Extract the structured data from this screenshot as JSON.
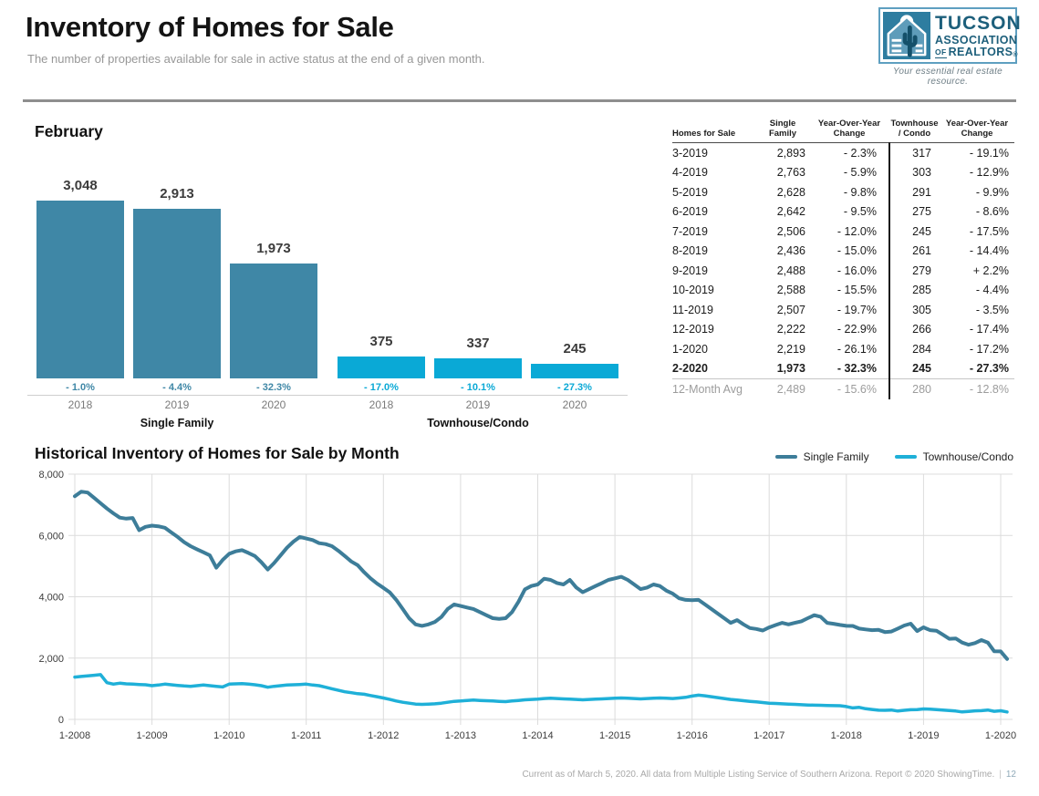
{
  "header": {
    "title": "Inventory of Homes for Sale",
    "subtitle": "The number of properties available for sale in active status at the end of a given month.",
    "logo": {
      "line1": "TUCSON",
      "line2": "ASSOCIATION",
      "line3_of": "OF",
      "line3_rest": "REALTORS",
      "reg": "®",
      "tagline": "Your essential real estate resource."
    }
  },
  "colors": {
    "single_family_bar": "#3f87a6",
    "townhouse_bar": "#0aa9d6",
    "single_family_line": "#3d7d99",
    "townhouse_line": "#1fb0d8",
    "grid": "#dcdcdc"
  },
  "table": {
    "col_headers": [
      {
        "l1": "Homes for Sale",
        "l2": ""
      },
      {
        "l1": "Single",
        "l2": "Family"
      },
      {
        "l1": "Year-Over-Year",
        "l2": "Change"
      },
      {
        "l1": "Townhouse",
        "l2": "/ Condo"
      },
      {
        "l1": "Year-Over-Year",
        "l2": "Change"
      }
    ],
    "rows": [
      [
        "3-2019",
        "2,893",
        "- 2.3%",
        "317",
        "- 19.1%"
      ],
      [
        "4-2019",
        "2,763",
        "- 5.9%",
        "303",
        "- 12.9%"
      ],
      [
        "5-2019",
        "2,628",
        "- 9.8%",
        "291",
        "- 9.9%"
      ],
      [
        "6-2019",
        "2,642",
        "- 9.5%",
        "275",
        "- 8.6%"
      ],
      [
        "7-2019",
        "2,506",
        "- 12.0%",
        "245",
        "- 17.5%"
      ],
      [
        "8-2019",
        "2,436",
        "- 15.0%",
        "261",
        "- 14.4%"
      ],
      [
        "9-2019",
        "2,488",
        "- 16.0%",
        "279",
        "+ 2.2%"
      ],
      [
        "10-2019",
        "2,588",
        "- 15.5%",
        "285",
        "- 4.4%"
      ],
      [
        "11-2019",
        "2,507",
        "- 19.7%",
        "305",
        "- 3.5%"
      ],
      [
        "12-2019",
        "2,222",
        "- 22.9%",
        "266",
        "- 17.4%"
      ],
      [
        "1-2020",
        "2,219",
        "- 26.1%",
        "284",
        "- 17.2%"
      ],
      [
        "2-2020",
        "1,973",
        "- 32.3%",
        "245",
        "- 27.3%"
      ]
    ],
    "bold_row_index": 11,
    "avg_row": [
      "12-Month Avg",
      "2,489",
      "- 15.6%",
      "280",
      "- 12.8%"
    ]
  },
  "chart_data": [
    {
      "type": "bar",
      "title": "February",
      "ylim": [
        0,
        3200
      ],
      "groups": [
        {
          "name": "Single Family",
          "color": "#3f87a6",
          "categories": [
            "2018",
            "2019",
            "2020"
          ],
          "values": [
            3048,
            2913,
            1973
          ],
          "values_display": [
            "3,048",
            "2,913",
            "1,973"
          ],
          "yoy_change": [
            "- 1.0%",
            "- 4.4%",
            "- 32.3%"
          ]
        },
        {
          "name": "Townhouse/Condo",
          "color": "#0aa9d6",
          "categories": [
            "2018",
            "2019",
            "2020"
          ],
          "values": [
            375,
            337,
            245
          ],
          "values_display": [
            "375",
            "337",
            "245"
          ],
          "yoy_change": [
            "- 17.0%",
            "- 10.1%",
            "- 27.3%"
          ]
        }
      ]
    },
    {
      "type": "line",
      "title": "Historical Inventory of Homes for Sale by Month",
      "x_start": "1-2008",
      "x_end": "2-2020",
      "x_tick_labels": [
        "1-2008",
        "1-2009",
        "1-2010",
        "1-2011",
        "1-2012",
        "1-2013",
        "1-2014",
        "1-2015",
        "1-2016",
        "1-2017",
        "1-2018",
        "1-2019",
        "1-2020"
      ],
      "ylim": [
        0,
        8000
      ],
      "y_ticks": [
        0,
        2000,
        4000,
        6000,
        8000
      ],
      "grid": true,
      "legend_position": "top-right",
      "series": [
        {
          "name": "Single Family",
          "color": "#3d7d99",
          "width": 4,
          "values": [
            7280,
            7430,
            7400,
            7230,
            7050,
            6880,
            6720,
            6580,
            6550,
            6570,
            6170,
            6280,
            6320,
            6300,
            6250,
            6100,
            5950,
            5780,
            5650,
            5550,
            5450,
            5350,
            4950,
            5200,
            5400,
            5480,
            5520,
            5430,
            5330,
            5130,
            4890,
            5100,
            5350,
            5600,
            5800,
            5950,
            5900,
            5850,
            5750,
            5720,
            5650,
            5500,
            5330,
            5150,
            5030,
            4800,
            4600,
            4430,
            4290,
            4140,
            3900,
            3600,
            3300,
            3100,
            3050,
            3100,
            3180,
            3340,
            3600,
            3750,
            3700,
            3650,
            3600,
            3500,
            3400,
            3300,
            3280,
            3300,
            3500,
            3840,
            4240,
            4350,
            4400,
            4590,
            4550,
            4450,
            4400,
            4550,
            4300,
            4150,
            4250,
            4350,
            4450,
            4550,
            4600,
            4650,
            4550,
            4400,
            4250,
            4300,
            4400,
            4350,
            4200,
            4100,
            3950,
            3900,
            3890,
            3900,
            3750,
            3600,
            3450,
            3300,
            3150,
            3240,
            3100,
            2980,
            2950,
            2900,
            3000,
            3079,
            3150,
            3100,
            3150,
            3200,
            3300,
            3400,
            3350,
            3150,
            3120,
            3080,
            3050,
            3048,
            2961,
            2936,
            2913,
            2920,
            2848,
            2866,
            2962,
            3063,
            3122,
            2882,
            3003,
            2913,
            2893,
            2763,
            2628,
            2642,
            2506,
            2436,
            2488,
            2588,
            2507,
            2222,
            2219,
            1973
          ]
        },
        {
          "name": "Townhouse/Condo",
          "color": "#1fb0d8",
          "width": 3.5,
          "values": [
            1380,
            1400,
            1420,
            1440,
            1460,
            1200,
            1150,
            1180,
            1160,
            1150,
            1140,
            1130,
            1100,
            1120,
            1150,
            1130,
            1110,
            1090,
            1080,
            1100,
            1120,
            1100,
            1080,
            1060,
            1150,
            1160,
            1170,
            1150,
            1130,
            1100,
            1050,
            1080,
            1100,
            1120,
            1130,
            1140,
            1150,
            1120,
            1100,
            1050,
            1000,
            950,
            900,
            870,
            840,
            820,
            780,
            740,
            700,
            650,
            600,
            560,
            530,
            500,
            490,
            500,
            510,
            530,
            560,
            590,
            600,
            620,
            630,
            620,
            610,
            600,
            590,
            580,
            600,
            620,
            640,
            650,
            660,
            680,
            690,
            680,
            670,
            660,
            650,
            640,
            650,
            660,
            670,
            680,
            690,
            700,
            690,
            680,
            670,
            680,
            690,
            700,
            690,
            680,
            700,
            720,
            760,
            790,
            770,
            740,
            710,
            680,
            650,
            630,
            610,
            590,
            570,
            550,
            530,
            520,
            510,
            500,
            490,
            480,
            470,
            465,
            460,
            455,
            450,
            445,
            420,
            375,
            392,
            348,
            323,
            301,
            297,
            305,
            273,
            298,
            316,
            322,
            343,
            337,
            317,
            303,
            291,
            275,
            245,
            261,
            279,
            285,
            305,
            266,
            284,
            245
          ]
        }
      ]
    }
  ],
  "footer": {
    "text": "Current as of March 5, 2020. All data from Multiple Listing Service of Southern Arizona. Report © 2020 ShowingTime.",
    "separator": "|",
    "page": "12"
  }
}
